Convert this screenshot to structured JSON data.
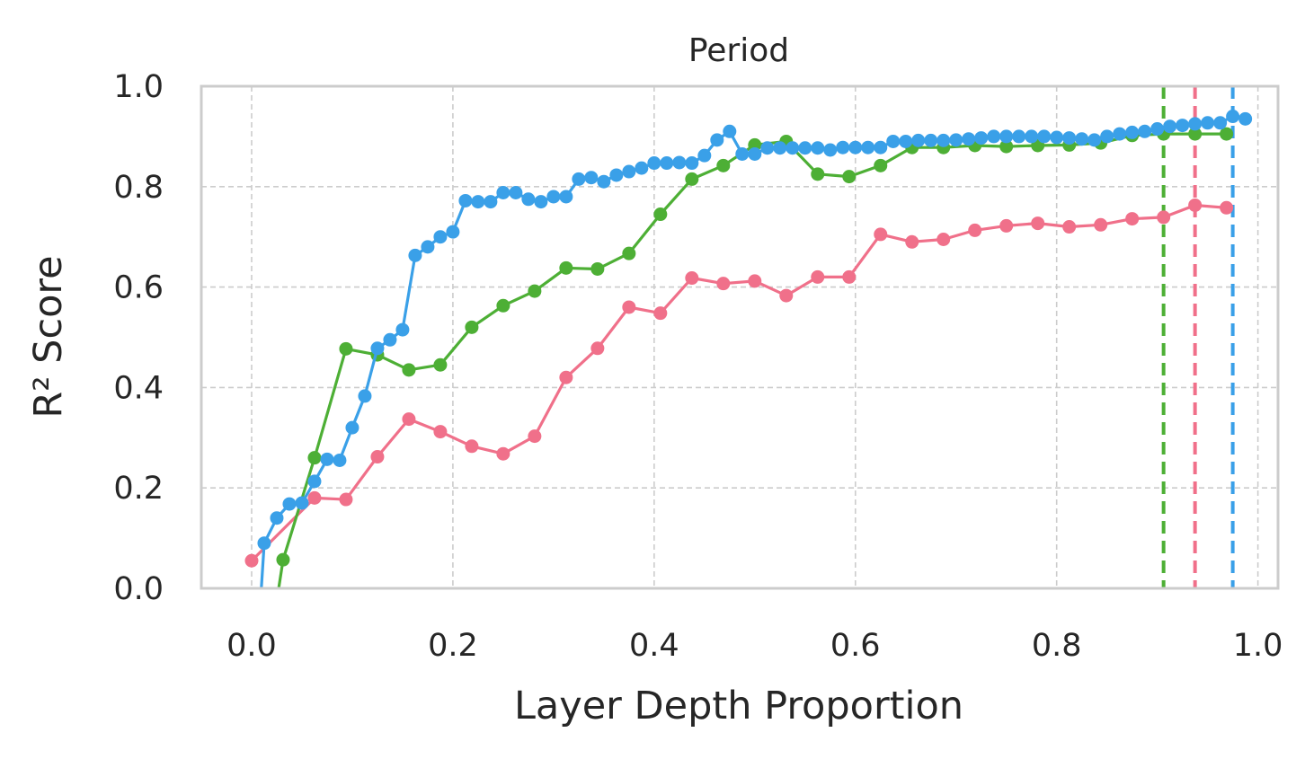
{
  "chart_data": {
    "type": "line",
    "title": "Period",
    "xlabel": "Layer Depth Proportion",
    "ylabel": "R² Score",
    "xlim": [
      -0.05,
      1.02
    ],
    "ylim": [
      0.0,
      1.0
    ],
    "xticks": [
      0.0,
      0.2,
      0.4,
      0.6,
      0.8,
      1.0
    ],
    "xtick_labels": [
      "0.0",
      "0.2",
      "0.4",
      "0.6",
      "0.8",
      "1.0"
    ],
    "yticks": [
      0.0,
      0.2,
      0.4,
      0.6,
      0.8,
      1.0
    ],
    "ytick_labels": [
      "0.0",
      "0.2",
      "0.4",
      "0.6",
      "0.8",
      "1.0"
    ],
    "grid": true,
    "legend": "none",
    "series": [
      {
        "color": "#f0708a",
        "x": [
          0.0,
          0.0625,
          0.09375,
          0.125,
          0.15625,
          0.1875,
          0.21875,
          0.25,
          0.28125,
          0.3125,
          0.34375,
          0.375,
          0.40625,
          0.4375,
          0.46875,
          0.5,
          0.53125,
          0.5625,
          0.59375,
          0.625,
          0.65625,
          0.6875,
          0.71875,
          0.75,
          0.78125,
          0.8125,
          0.84375,
          0.875,
          0.90625,
          0.9375,
          0.96875
        ],
        "y": [
          0.055,
          0.18,
          0.177,
          0.262,
          0.337,
          0.312,
          0.283,
          0.268,
          0.303,
          0.42,
          0.478,
          0.56,
          0.548,
          0.618,
          0.607,
          0.612,
          0.583,
          0.62,
          0.62,
          0.705,
          0.69,
          0.695,
          0.713,
          0.722,
          0.727,
          0.72,
          0.724,
          0.736,
          0.739,
          0.763,
          0.758
        ],
        "vline_x": 0.9375
      },
      {
        "color": "#4daf35",
        "x": [
          0.0,
          0.03125,
          0.0625,
          0.09375,
          0.125,
          0.15625,
          0.1875,
          0.21875,
          0.25,
          0.28125,
          0.3125,
          0.34375,
          0.375,
          0.40625,
          0.4375,
          0.46875,
          0.5,
          0.53125,
          0.5625,
          0.59375,
          0.625,
          0.65625,
          0.6875,
          0.71875,
          0.75,
          0.78125,
          0.8125,
          0.84375,
          0.875,
          0.90625,
          0.9375,
          0.96875
        ],
        "y": [
          -0.35,
          0.057,
          0.26,
          0.477,
          0.465,
          0.435,
          0.445,
          0.52,
          0.563,
          0.592,
          0.638,
          0.636,
          0.667,
          0.745,
          0.815,
          0.842,
          0.883,
          0.89,
          0.825,
          0.82,
          0.842,
          0.878,
          0.878,
          0.882,
          0.88,
          0.882,
          0.883,
          0.887,
          0.902,
          0.905,
          0.905,
          0.905
        ],
        "vline_x": 0.90625
      },
      {
        "color": "#3aa0e8",
        "x": [
          0.0,
          0.0125,
          0.025,
          0.0375,
          0.05,
          0.0625,
          0.075,
          0.0875,
          0.1,
          0.1125,
          0.125,
          0.1375,
          0.15,
          0.1625,
          0.175,
          0.1875,
          0.2,
          0.2125,
          0.225,
          0.2375,
          0.25,
          0.2625,
          0.275,
          0.2875,
          0.3,
          0.3125,
          0.325,
          0.3375,
          0.35,
          0.3625,
          0.375,
          0.3875,
          0.4,
          0.4125,
          0.425,
          0.4375,
          0.45,
          0.4625,
          0.475,
          0.4875,
          0.5,
          0.5125,
          0.525,
          0.5375,
          0.55,
          0.5625,
          0.575,
          0.5875,
          0.6,
          0.6125,
          0.625,
          0.6375,
          0.65,
          0.6625,
          0.675,
          0.6875,
          0.7,
          0.7125,
          0.725,
          0.7375,
          0.75,
          0.7625,
          0.775,
          0.7875,
          0.8,
          0.8125,
          0.825,
          0.8375,
          0.85,
          0.8625,
          0.875,
          0.8875,
          0.9,
          0.9125,
          0.925,
          0.9375,
          0.95,
          0.9625,
          0.975,
          0.9875
        ],
        "y": [
          -0.3,
          0.09,
          0.14,
          0.168,
          0.17,
          0.213,
          0.257,
          0.255,
          0.32,
          0.383,
          0.478,
          0.495,
          0.515,
          0.663,
          0.68,
          0.7,
          0.71,
          0.772,
          0.77,
          0.77,
          0.788,
          0.788,
          0.775,
          0.77,
          0.78,
          0.78,
          0.815,
          0.818,
          0.81,
          0.823,
          0.83,
          0.837,
          0.847,
          0.847,
          0.848,
          0.847,
          0.862,
          0.893,
          0.91,
          0.865,
          0.865,
          0.877,
          0.877,
          0.877,
          0.877,
          0.877,
          0.873,
          0.878,
          0.878,
          0.878,
          0.878,
          0.89,
          0.89,
          0.892,
          0.892,
          0.892,
          0.893,
          0.895,
          0.897,
          0.9,
          0.9,
          0.9,
          0.9,
          0.9,
          0.898,
          0.897,
          0.895,
          0.893,
          0.9,
          0.905,
          0.908,
          0.91,
          0.915,
          0.92,
          0.922,
          0.925,
          0.927,
          0.927,
          0.94,
          0.935
        ],
        "vline_x": 0.975
      }
    ]
  }
}
